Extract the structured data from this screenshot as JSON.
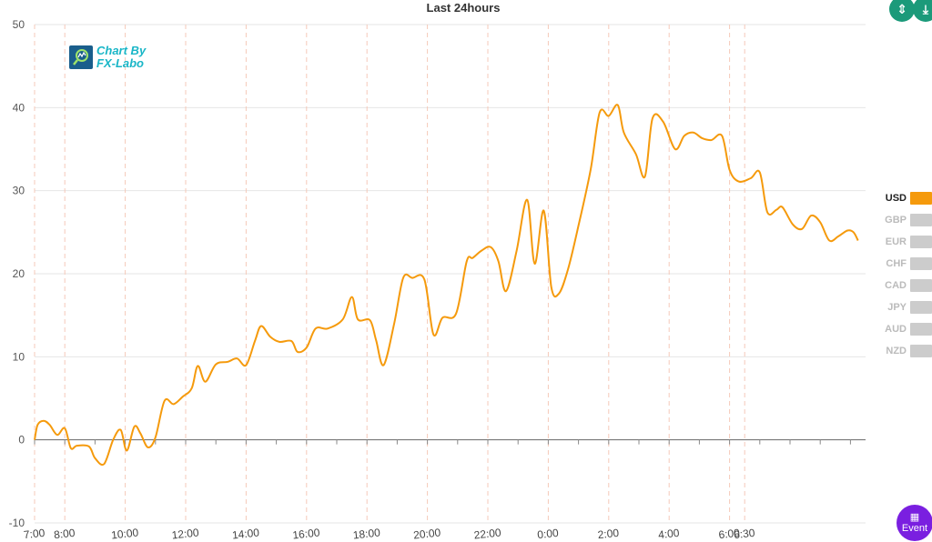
{
  "chart_data": {
    "type": "line",
    "title": "Last 24hours",
    "ylim": [
      -10,
      50
    ],
    "y_ticks": [
      "50",
      "40",
      "30",
      "20",
      "10",
      "0",
      "-10"
    ],
    "x_ticks": [
      "7:00",
      "8:00",
      "10:00",
      "12:00",
      "14:00",
      "16:00",
      "18:00",
      "20:00",
      "22:00",
      "0:00",
      "2:00",
      "4:00",
      "6:00",
      "6:30"
    ],
    "grid": true,
    "legend_position": "right",
    "series": [
      {
        "name": "USD",
        "color": "#f59a0c",
        "points": [
          [
            7.0,
            0.0
          ],
          [
            7.1,
            1.8
          ],
          [
            7.3,
            2.3
          ],
          [
            7.5,
            1.8
          ],
          [
            7.75,
            0.6
          ],
          [
            8.0,
            1.4
          ],
          [
            8.2,
            -1.0
          ],
          [
            8.4,
            -0.7
          ],
          [
            8.8,
            -0.8
          ],
          [
            9.0,
            -2.2
          ],
          [
            9.3,
            -2.9
          ],
          [
            9.6,
            0.0
          ],
          [
            9.85,
            1.2
          ],
          [
            10.05,
            -1.3
          ],
          [
            10.3,
            1.6
          ],
          [
            10.5,
            0.8
          ],
          [
            10.75,
            -0.9
          ],
          [
            11.0,
            0.3
          ],
          [
            11.3,
            4.7
          ],
          [
            11.6,
            4.3
          ],
          [
            11.9,
            5.2
          ],
          [
            12.2,
            6.2
          ],
          [
            12.4,
            8.9
          ],
          [
            12.65,
            7.0
          ],
          [
            13.0,
            9.1
          ],
          [
            13.4,
            9.4
          ],
          [
            13.7,
            9.8
          ],
          [
            14.0,
            9.0
          ],
          [
            14.3,
            12.0
          ],
          [
            14.5,
            13.7
          ],
          [
            14.8,
            12.4
          ],
          [
            15.1,
            11.8
          ],
          [
            15.5,
            11.9
          ],
          [
            15.7,
            10.6
          ],
          [
            16.0,
            11.1
          ],
          [
            16.3,
            13.4
          ],
          [
            16.7,
            13.4
          ],
          [
            17.2,
            14.5
          ],
          [
            17.5,
            17.2
          ],
          [
            17.7,
            14.5
          ],
          [
            18.1,
            14.4
          ],
          [
            18.3,
            12.0
          ],
          [
            18.55,
            9.0
          ],
          [
            18.9,
            14.0
          ],
          [
            19.2,
            19.5
          ],
          [
            19.5,
            19.5
          ],
          [
            19.9,
            19.3
          ],
          [
            20.2,
            12.7
          ],
          [
            20.5,
            14.7
          ],
          [
            20.95,
            15.2
          ],
          [
            21.3,
            21.5
          ],
          [
            21.5,
            21.9
          ],
          [
            21.8,
            22.8
          ],
          [
            22.1,
            23.2
          ],
          [
            22.35,
            21.5
          ],
          [
            22.6,
            17.9
          ],
          [
            22.95,
            22.7
          ],
          [
            23.3,
            28.9
          ],
          [
            23.55,
            21.2
          ],
          [
            23.85,
            27.6
          ],
          [
            24.1,
            18.4
          ],
          [
            24.35,
            17.6
          ],
          [
            24.65,
            20.5
          ],
          [
            25.0,
            25.8
          ],
          [
            25.4,
            32.5
          ],
          [
            25.7,
            39.4
          ],
          [
            26.0,
            39.0
          ],
          [
            26.3,
            40.3
          ],
          [
            26.5,
            37.0
          ],
          [
            26.9,
            34.4
          ],
          [
            27.2,
            31.7
          ],
          [
            27.45,
            38.7
          ],
          [
            27.8,
            38.3
          ],
          [
            28.2,
            35.0
          ],
          [
            28.5,
            36.6
          ],
          [
            28.8,
            37.0
          ],
          [
            29.1,
            36.3
          ],
          [
            29.4,
            36.1
          ],
          [
            29.75,
            36.6
          ],
          [
            30.0,
            32.5
          ],
          [
            30.3,
            31.1
          ],
          [
            30.7,
            31.5
          ],
          [
            31.0,
            32.2
          ],
          [
            31.25,
            27.4
          ],
          [
            31.55,
            27.7
          ],
          [
            31.75,
            28.0
          ],
          [
            32.1,
            25.9
          ],
          [
            32.4,
            25.4
          ],
          [
            32.7,
            27.0
          ],
          [
            33.0,
            26.2
          ],
          [
            33.3,
            24.0
          ],
          [
            33.6,
            24.5
          ],
          [
            33.9,
            25.2
          ],
          [
            34.1,
            25.0
          ],
          [
            34.25,
            24.0
          ]
        ]
      }
    ],
    "legend": [
      {
        "label": "USD",
        "active": true,
        "color": "#f59a0c"
      },
      {
        "label": "GBP",
        "active": false,
        "color": "#cccccc"
      },
      {
        "label": "EUR",
        "active": false,
        "color": "#cccccc"
      },
      {
        "label": "CHF",
        "active": false,
        "color": "#cccccc"
      },
      {
        "label": "CAD",
        "active": false,
        "color": "#cccccc"
      },
      {
        "label": "JPY",
        "active": false,
        "color": "#cccccc"
      },
      {
        "label": "AUD",
        "active": false,
        "color": "#cccccc"
      },
      {
        "label": "NZD",
        "active": false,
        "color": "#cccccc"
      }
    ]
  },
  "logo": {
    "line1": "Chart By",
    "line2": "FX-Labo",
    "icon": "chart-magnifier-icon"
  },
  "toolbar": {
    "collapse_icon": "collapse-vertical-icon",
    "export_icon": "download-icon"
  },
  "event_button": {
    "label": "Event",
    "icon": "calendar-icon",
    "color": "#7a1fe0"
  },
  "colors": {
    "accent": "#f59a0c",
    "inactive": "#cccccc",
    "button": "#1b9a7a",
    "vgrid": "#f6c9b8",
    "hgrid": "#e6e6e6"
  }
}
